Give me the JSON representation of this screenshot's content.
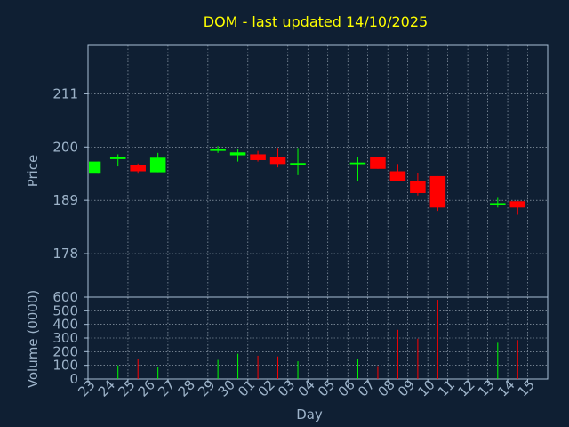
{
  "colors": {
    "background": "#0f1f33",
    "axis": "#a8bfd6",
    "label": "#9db3c9",
    "title": "#ffff00",
    "grid": "#c8d4e0",
    "up": "#00ff00",
    "down": "#ff0000"
  },
  "chart_data": {
    "type": "candlestick",
    "title": "DOM - last updated 14/10/2025",
    "xlabel": "Day",
    "price": {
      "ylabel": "Price",
      "ylim": [
        169,
        221
      ],
      "yticks": [
        178,
        189,
        200,
        211
      ]
    },
    "volume": {
      "ylabel": "Volume (0000)",
      "ylim": [
        0,
        600
      ],
      "yticks": [
        0,
        100,
        200,
        300,
        400,
        500,
        600
      ]
    },
    "x_tick_labels": [
      "23",
      "24",
      "25",
      "26",
      "27",
      "28",
      "29",
      "30",
      "01",
      "02",
      "03",
      "04",
      "05",
      "06",
      "07",
      "08",
      "09",
      "10",
      "11",
      "12",
      "13",
      "14",
      "15"
    ],
    "grid": true,
    "candles": [
      {
        "day": "23",
        "open": 194.5,
        "close": 197.0,
        "high": 197.0,
        "low": 194.5,
        "volume": 0
      },
      {
        "day": "24",
        "open": 197.5,
        "close": 198.0,
        "high": 198.5,
        "low": 196.0,
        "volume": 100
      },
      {
        "day": "25",
        "open": 196.3,
        "close": 195.0,
        "high": 196.6,
        "low": 194.5,
        "volume": 145
      },
      {
        "day": "26",
        "open": 194.8,
        "close": 197.8,
        "high": 198.8,
        "low": 194.8,
        "volume": 90
      },
      {
        "day": "29",
        "open": 199.2,
        "close": 199.6,
        "high": 200.2,
        "low": 198.8,
        "volume": 140
      },
      {
        "day": "30",
        "open": 198.3,
        "close": 198.9,
        "high": 199.5,
        "low": 197.0,
        "volume": 185
      },
      {
        "day": "01",
        "open": 198.5,
        "close": 197.3,
        "high": 199.2,
        "low": 197.0,
        "volume": 170
      },
      {
        "day": "02",
        "open": 198.0,
        "close": 196.5,
        "high": 199.8,
        "low": 195.8,
        "volume": 165
      },
      {
        "day": "03",
        "open": 196.5,
        "close": 196.7,
        "high": 199.8,
        "low": 194.2,
        "volume": 130
      },
      {
        "day": "06",
        "open": 196.5,
        "close": 196.8,
        "high": 198.0,
        "low": 193.0,
        "volume": 145
      },
      {
        "day": "07",
        "open": 198.0,
        "close": 195.5,
        "high": 198.0,
        "low": 195.5,
        "volume": 95
      },
      {
        "day": "08",
        "open": 195.0,
        "close": 193.0,
        "high": 196.5,
        "low": 193.0,
        "volume": 360
      },
      {
        "day": "09",
        "open": 193.0,
        "close": 190.5,
        "high": 194.7,
        "low": 190.0,
        "volume": 295
      },
      {
        "day": "10",
        "open": 194.0,
        "close": 187.5,
        "high": 194.0,
        "low": 186.8,
        "volume": 580
      },
      {
        "day": "13",
        "open": 188.1,
        "close": 188.4,
        "high": 189.5,
        "low": 187.5,
        "volume": 265
      },
      {
        "day": "14",
        "open": 188.8,
        "close": 187.5,
        "high": 188.8,
        "low": 186.0,
        "volume": 285
      }
    ]
  }
}
